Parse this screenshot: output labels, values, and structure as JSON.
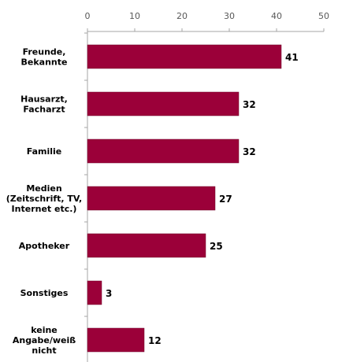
{
  "chart_data": {
    "type": "bar",
    "orientation": "horizontal",
    "categories": [
      [
        "Freunde,",
        "Bekannte"
      ],
      [
        "Hausarzt,",
        "Facharzt"
      ],
      [
        "Familie"
      ],
      [
        "Medien",
        "(Zeitschrift, TV,",
        "Internet etc.)"
      ],
      [
        "Apotheker"
      ],
      [
        "Sonstiges"
      ],
      [
        "keine",
        "Angabe/weiß",
        "nicht"
      ]
    ],
    "values": [
      41,
      32,
      32,
      27,
      25,
      3,
      12
    ],
    "xlim": [
      0,
      50
    ],
    "xticks": [
      0,
      10,
      20,
      30,
      40,
      50
    ],
    "xaxis_position": "top",
    "grid": false,
    "data_labels": true,
    "colors": {
      "bar": "#9b0039",
      "bar_edge": "#6e0028",
      "axis": "#a6a6a6",
      "tick_text": "#595959"
    }
  }
}
